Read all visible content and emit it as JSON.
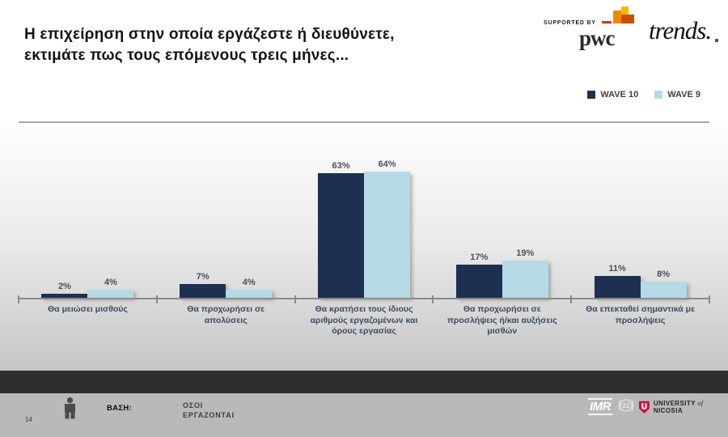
{
  "header": {
    "title": "Η επιχείρηση στην οποία εργάζεστε ή διευθύνετε,\nεκτιμάτε πως τους επόμενους τρεις μήνες...",
    "supported_by": "SUPPORTED BY",
    "pwc_logo_text": "pwc",
    "trends_logo_text": "trends."
  },
  "chart_data": {
    "type": "bar",
    "categories": [
      "Θα μειώσει μισθούς",
      "Θα προχωρήσει σε απολύσεις",
      "Θα κρατήσει τους ίδιους αριθμούς εργαζομένων και όρους εργασίας",
      "Θα προχωρήσει σε προσλήψεις ή/και αυξήσεις μισθών",
      "Θα επεκταθεί σημαντικά με προσλήψεις"
    ],
    "series": [
      {
        "name": "WAVE 10",
        "color": "#1D3052",
        "values": [
          2,
          7,
          63,
          17,
          11
        ]
      },
      {
        "name": "WAVE 9",
        "color": "#B6DAE5",
        "values": [
          4,
          4,
          64,
          19,
          8
        ]
      }
    ],
    "value_suffix": "%",
    "ylim": [
      0,
      70
    ],
    "y_axis_visible": false,
    "grid": false,
    "legend_position": "top-right"
  },
  "footer": {
    "page_number": "14",
    "base_label": "ΒΑΣΗ:",
    "base_value": "ΟΣΟΙ\nΕΡΓΑΖΟΝΤΑΙ",
    "imr_logo_text": "IMR",
    "anniversary_number": "22",
    "university_word1": "UNIVERSITY",
    "university_word2": "of",
    "university_word3": "NICOSIA"
  }
}
